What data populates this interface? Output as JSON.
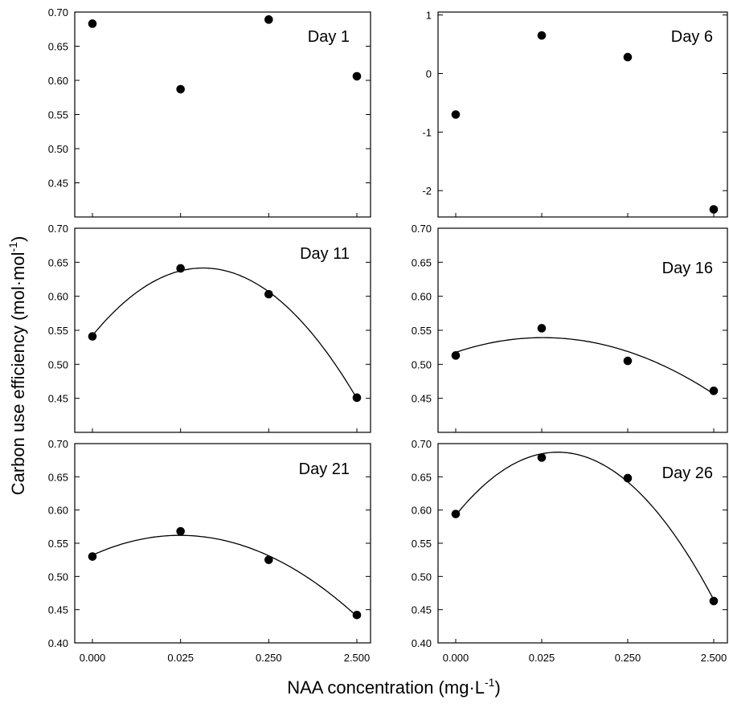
{
  "figure": {
    "ylabel": "Carbon use efficiency (mol·mol",
    "ylabel_sup": "-1",
    "ylabel_end": ")",
    "xlabel": "NAA concentration  (mg·L",
    "xlabel_sup": "-1",
    "xlabel_end": ")"
  },
  "chart_data": [
    {
      "type": "scatter",
      "panel": "Day 1",
      "title": "",
      "xlabel": "NAA concentration (mg·L-1)",
      "ylabel": "Carbon use efficiency (mol·mol-1)",
      "categories": [
        "0.000",
        "0.025",
        "0.250",
        "2.500"
      ],
      "values": [
        0.683,
        0.587,
        0.689,
        0.606
      ],
      "ylim": [
        0.4,
        0.7
      ],
      "yticks": [
        0.45,
        0.5,
        0.55,
        0.6,
        0.65,
        0.7
      ],
      "ytick_labels": [
        "0.45",
        "0.50",
        "0.55",
        "0.60",
        "0.65",
        "0.70"
      ],
      "fit": false,
      "show_xticks": false,
      "grid": false
    },
    {
      "type": "scatter",
      "panel": "Day 6",
      "title": "",
      "categories": [
        "0.000",
        "0.025",
        "0.250",
        "2.500"
      ],
      "values": [
        -0.7,
        0.65,
        0.28,
        -2.32
      ],
      "ylim": [
        -2.45,
        1.05
      ],
      "yticks": [
        -2,
        -1,
        0,
        1
      ],
      "ytick_labels": [
        "-2",
        "-1",
        "0",
        "1"
      ],
      "fit": false,
      "show_xticks": false,
      "grid": false
    },
    {
      "type": "scatter",
      "panel": "Day 11",
      "title": "",
      "categories": [
        "0.000",
        "0.025",
        "0.250",
        "2.500"
      ],
      "values": [
        0.541,
        0.641,
        0.603,
        0.451
      ],
      "ylim": [
        0.4,
        0.7
      ],
      "yticks": [
        0.45,
        0.5,
        0.55,
        0.6,
        0.65,
        0.7
      ],
      "ytick_labels": [
        "0.45",
        "0.50",
        "0.55",
        "0.60",
        "0.65",
        "0.70"
      ],
      "fit": true,
      "show_xticks": false,
      "grid": false
    },
    {
      "type": "scatter",
      "panel": "Day 16",
      "title": "",
      "categories": [
        "0.000",
        "0.025",
        "0.250",
        "2.500"
      ],
      "values": [
        0.513,
        0.553,
        0.505,
        0.461
      ],
      "ylim": [
        0.4,
        0.7
      ],
      "yticks": [
        0.45,
        0.5,
        0.55,
        0.6,
        0.65,
        0.7
      ],
      "ytick_labels": [
        "0.45",
        "0.50",
        "0.55",
        "0.60",
        "0.65",
        "0.70"
      ],
      "fit": true,
      "show_xticks": false,
      "grid": false
    },
    {
      "type": "scatter",
      "panel": "Day 21",
      "title": "",
      "categories": [
        "0.000",
        "0.025",
        "0.250",
        "2.500"
      ],
      "values": [
        0.53,
        0.568,
        0.525,
        0.442
      ],
      "ylim": [
        0.4,
        0.7
      ],
      "yticks": [
        0.4,
        0.45,
        0.5,
        0.55,
        0.6,
        0.65,
        0.7
      ],
      "ytick_labels": [
        "0.40",
        "0.45",
        "0.50",
        "0.55",
        "0.60",
        "0.65",
        "0.70"
      ],
      "fit": true,
      "show_xticks": true,
      "grid": false
    },
    {
      "type": "scatter",
      "panel": "Day 26",
      "title": "",
      "categories": [
        "0.000",
        "0.025",
        "0.250",
        "2.500"
      ],
      "values": [
        0.594,
        0.679,
        0.648,
        0.463
      ],
      "ylim": [
        0.4,
        0.7
      ],
      "yticks": [
        0.4,
        0.45,
        0.5,
        0.55,
        0.6,
        0.65,
        0.7
      ],
      "ytick_labels": [
        "0.40",
        "0.45",
        "0.50",
        "0.55",
        "0.60",
        "0.65",
        "0.70"
      ],
      "fit": true,
      "show_xticks": true,
      "grid": false
    }
  ]
}
